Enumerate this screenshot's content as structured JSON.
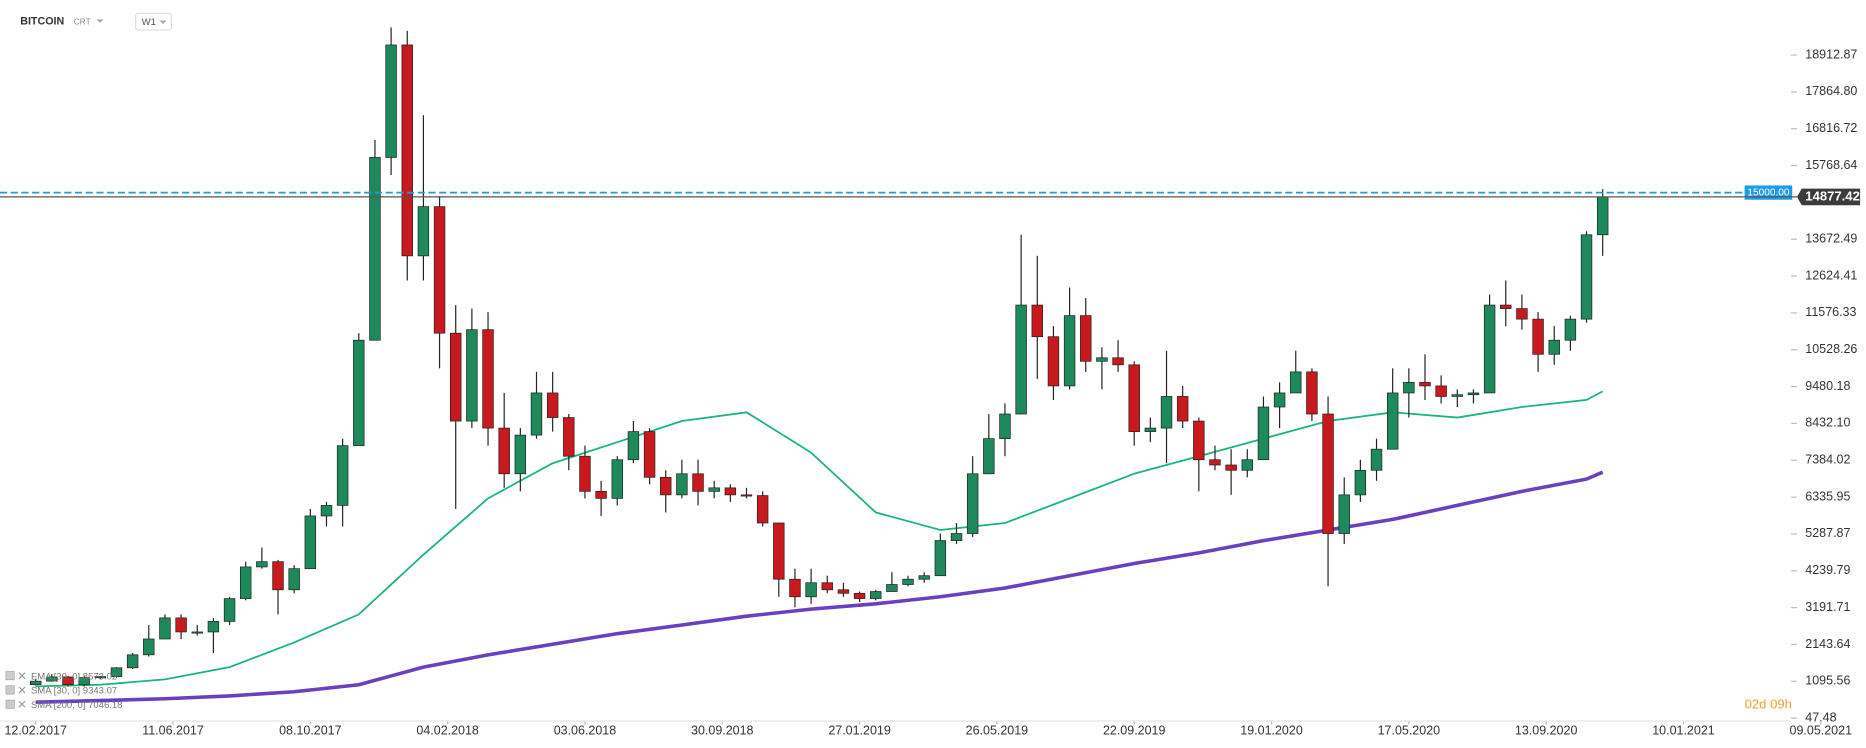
{
  "header": {
    "symbol": "BITCOIN",
    "sub": "CRT",
    "interval": "W1"
  },
  "countdown": "02d 09h",
  "chart_data": {
    "type": "candlestick",
    "up_color": "#1e8a5c",
    "down_color": "#c8191e",
    "ylim": [
      0,
      20470
    ],
    "yticks": [
      47.48,
      1095.56,
      2143.64,
      3191.71,
      4239.79,
      5287.87,
      6335.95,
      7384.02,
      {
        "value": 8432.1,
        "label": "8432.10"
      },
      9480.18,
      10528.26,
      11576.33,
      12624.41,
      13672.49,
      15768.64,
      16816.72,
      {
        "value": 17864.8,
        "label": "17864.80"
      },
      18912.87
    ],
    "xticks": [
      "12.02.2017",
      "11.06.2017",
      "08.10.2017",
      "04.02.2018",
      "03.06.2018",
      "30.09.2018",
      "27.01.2019",
      "26.05.2019",
      "22.09.2019",
      "19.01.2020",
      "17.05.2020",
      "13.09.2020",
      "10.01.2021",
      "09.05.2021"
    ],
    "last_price": 14877.42,
    "alert_line": {
      "value": 15000,
      "label": "15000.00",
      "color": "#1e9be9"
    },
    "x": [
      "12.02.2017",
      "26.02.2017",
      "12.03.2017",
      "26.03.2017",
      "09.04.2017",
      "23.04.2017",
      "07.05.2017",
      "21.05.2017",
      "04.06.2017",
      "18.06.2017",
      "02.07.2017",
      "16.07.2017",
      "30.07.2017",
      "13.08.2017",
      "27.08.2017",
      "10.09.2017",
      "24.09.2017",
      "08.10.2017",
      "22.10.2017",
      "05.11.2017",
      "19.11.2017",
      "03.12.2017",
      "17.12.2017",
      "31.12.2017",
      "14.01.2018",
      "28.01.2018",
      "11.02.2018",
      "25.02.2018",
      "11.03.2018",
      "25.03.2018",
      "08.04.2018",
      "22.04.2018",
      "06.05.2018",
      "20.05.2018",
      "03.06.2018",
      "17.06.2018",
      "01.07.2018",
      "15.07.2018",
      "29.07.2018",
      "12.08.2018",
      "26.08.2018",
      "09.09.2018",
      "23.09.2018",
      "07.10.2018",
      "21.10.2018",
      "04.11.2018",
      "18.11.2018",
      "02.12.2018",
      "16.12.2018",
      "30.12.2018",
      "13.01.2019",
      "27.01.2019",
      "10.02.2019",
      "24.02.2019",
      "10.03.2019",
      "24.03.2019",
      "07.04.2019",
      "21.04.2019",
      "05.05.2019",
      "19.05.2019",
      "02.06.2019",
      "16.06.2019",
      "30.06.2019",
      "14.07.2019",
      "28.07.2019",
      "11.08.2019",
      "25.08.2019",
      "08.09.2019",
      "22.09.2019",
      "06.10.2019",
      "20.10.2019",
      "03.11.2019",
      "17.11.2019",
      "01.12.2019",
      "15.12.2019",
      "29.12.2019",
      "12.01.2020",
      "26.01.2020",
      "09.02.2020",
      "23.02.2020",
      "08.03.2020",
      "22.03.2020",
      "05.04.2020",
      "19.04.2020",
      "03.05.2020",
      "17.05.2020",
      "31.05.2020",
      "14.06.2020",
      "28.06.2020",
      "12.07.2020",
      "26.07.2020",
      "09.08.2020",
      "23.08.2020",
      "06.09.2020",
      "20.09.2020",
      "04.10.2020",
      "18.10.2020",
      "01.11.2020"
    ],
    "values": [
      [
        1000,
        1150,
        980,
        1100
      ],
      [
        1100,
        1300,
        1100,
        1220
      ],
      [
        1220,
        1250,
        950,
        1000
      ],
      [
        1000,
        1250,
        950,
        1200
      ],
      [
        1200,
        1250,
        1150,
        1230
      ],
      [
        1230,
        1500,
        1200,
        1480
      ],
      [
        1480,
        1900,
        1450,
        1850
      ],
      [
        1850,
        2700,
        1800,
        2300
      ],
      [
        2300,
        3000,
        2300,
        2900
      ],
      [
        2900,
        3000,
        2300,
        2500
      ],
      [
        2500,
        2700,
        2400,
        2500
      ],
      [
        2500,
        2900,
        1900,
        2800
      ],
      [
        2800,
        3500,
        2700,
        3450
      ],
      [
        3450,
        4500,
        3400,
        4350
      ],
      [
        4350,
        4900,
        4300,
        4500
      ],
      [
        4500,
        4550,
        3000,
        3700
      ],
      [
        3700,
        4400,
        3600,
        4300
      ],
      [
        4300,
        6000,
        4300,
        5800
      ],
      [
        5800,
        6200,
        5500,
        6100
      ],
      [
        6100,
        8000,
        5500,
        7800
      ],
      [
        7800,
        11000,
        7800,
        10800
      ],
      [
        10800,
        16500,
        10800,
        16000
      ],
      [
        16000,
        19700,
        15500,
        19200
      ],
      [
        19200,
        19600,
        12500,
        13200
      ],
      [
        13200,
        17200,
        12500,
        14600
      ],
      [
        14600,
        14900,
        10000,
        11000
      ],
      [
        11000,
        11800,
        6000,
        8500
      ],
      [
        8500,
        11700,
        8300,
        11100
      ],
      [
        11100,
        11600,
        7800,
        8300
      ],
      [
        8300,
        9300,
        6600,
        7000
      ],
      [
        7000,
        8300,
        6500,
        8100
      ],
      [
        8100,
        9900,
        8000,
        9300
      ],
      [
        9300,
        9900,
        8200,
        8600
      ],
      [
        8600,
        8700,
        7100,
        7500
      ],
      [
        7500,
        7800,
        6300,
        6500
      ],
      [
        6500,
        6800,
        5800,
        6300
      ],
      [
        6300,
        7500,
        6100,
        7400
      ],
      [
        7400,
        8500,
        7300,
        8200
      ],
      [
        8200,
        8300,
        6700,
        6900
      ],
      [
        6900,
        7100,
        5900,
        6400
      ],
      [
        6400,
        7400,
        6300,
        7000
      ],
      [
        7000,
        7400,
        6100,
        6500
      ],
      [
        6500,
        6800,
        6300,
        6600
      ],
      [
        6600,
        6700,
        6200,
        6400
      ],
      [
        6400,
        6600,
        6300,
        6380
      ],
      [
        6380,
        6500,
        5500,
        5600
      ],
      [
        5600,
        5600,
        3500,
        4000
      ],
      [
        4000,
        4300,
        3200,
        3500
      ],
      [
        3500,
        4300,
        3300,
        3900
      ],
      [
        3900,
        4100,
        3600,
        3700
      ],
      [
        3700,
        3900,
        3500,
        3600
      ],
      [
        3600,
        3650,
        3350,
        3450
      ],
      [
        3450,
        3700,
        3400,
        3650
      ],
      [
        3650,
        4200,
        3650,
        3850
      ],
      [
        3850,
        4100,
        3800,
        4000
      ],
      [
        4000,
        4200,
        3900,
        4100
      ],
      [
        4100,
        5300,
        4100,
        5100
      ],
      [
        5100,
        5600,
        5000,
        5300
      ],
      [
        5300,
        7500,
        5200,
        7000
      ],
      [
        7000,
        8700,
        7000,
        8000
      ],
      [
        8000,
        9000,
        7500,
        8700
      ],
      [
        8700,
        13800,
        8700,
        11800
      ],
      [
        11800,
        13200,
        9700,
        10900
      ],
      [
        10900,
        11200,
        9100,
        9500
      ],
      [
        9500,
        12300,
        9400,
        11500
      ],
      [
        11500,
        12000,
        9900,
        10200
      ],
      [
        10200,
        10600,
        9400,
        10300
      ],
      [
        10300,
        10800,
        9900,
        10100
      ],
      [
        10100,
        10200,
        7800,
        8200
      ],
      [
        8200,
        8600,
        7900,
        8300
      ],
      [
        8300,
        10500,
        7300,
        9200
      ],
      [
        9200,
        9500,
        8300,
        8500
      ],
      [
        8500,
        8600,
        6500,
        7400
      ],
      [
        7400,
        7800,
        7100,
        7250
      ],
      [
        7250,
        7700,
        6400,
        7100
      ],
      [
        7100,
        7700,
        6900,
        7400
      ],
      [
        7400,
        9200,
        7400,
        8900
      ],
      [
        8900,
        9600,
        8300,
        9300
      ],
      [
        9300,
        10500,
        9300,
        9900
      ],
      [
        9900,
        10000,
        8500,
        8700
      ],
      [
        8700,
        9200,
        3800,
        5300
      ],
      [
        5300,
        6900,
        5000,
        6400
      ],
      [
        6400,
        7400,
        6200,
        7100
      ],
      [
        7100,
        8000,
        6800,
        7700
      ],
      [
        7700,
        10000,
        7700,
        9300
      ],
      [
        9300,
        10000,
        8600,
        9600
      ],
      [
        9600,
        10400,
        9100,
        9500
      ],
      [
        9500,
        9800,
        9000,
        9200
      ],
      [
        9200,
        9400,
        8900,
        9250
      ],
      [
        9250,
        9400,
        9000,
        9300
      ],
      [
        9300,
        12100,
        9300,
        11800
      ],
      [
        11800,
        12500,
        11200,
        11700
      ],
      [
        11700,
        12100,
        11100,
        11400
      ],
      [
        11400,
        11600,
        9900,
        10400
      ],
      [
        10400,
        11200,
        10100,
        10800
      ],
      [
        10800,
        11500,
        10500,
        11400
      ],
      [
        11400,
        13900,
        11300,
        13800
      ],
      [
        13800,
        15100,
        13200,
        14877.42
      ]
    ],
    "overlays": [
      {
        "color": "#1cb47c",
        "width": 1.5,
        "x": [
          "12.02.2017",
          "09.04.2017",
          "04.06.2017",
          "30.07.2017",
          "24.09.2017",
          "19.11.2017",
          "14.01.2018",
          "11.03.2018",
          "06.05.2018",
          "01.07.2018",
          "26.08.2018",
          "21.10.2018",
          "16.12.2018",
          "10.02.2019",
          "07.04.2019",
          "02.06.2019",
          "28.07.2019",
          "22.09.2019",
          "17.11.2019",
          "12.01.2020",
          "08.03.2020",
          "03.05.2020",
          "28.06.2020",
          "23.08.2020",
          "18.10.2020",
          "01.11.2020"
        ],
        "values": [
          950,
          1000,
          1150,
          1500,
          2200,
          3000,
          4700,
          6300,
          7300,
          7900,
          8500,
          8750,
          7600,
          5900,
          5400,
          5600,
          6300,
          7000,
          7500,
          8000,
          8500,
          8750,
          8600,
          8900,
          9100,
          9343.07
        ]
      },
      {
        "color": "#6a3fc0",
        "width": 3,
        "x": [
          "12.02.2017",
          "09.04.2017",
          "04.06.2017",
          "30.07.2017",
          "24.09.2017",
          "19.11.2017",
          "14.01.2018",
          "11.03.2018",
          "06.05.2018",
          "01.07.2018",
          "26.08.2018",
          "21.10.2018",
          "16.12.2018",
          "10.02.2019",
          "07.04.2019",
          "02.06.2019",
          "28.07.2019",
          "22.09.2019",
          "17.11.2019",
          "12.01.2020",
          "08.03.2020",
          "03.05.2020",
          "28.06.2020",
          "23.08.2020",
          "18.10.2020",
          "01.11.2020"
        ],
        "values": [
          500,
          550,
          600,
          680,
          800,
          1000,
          1500,
          1850,
          2150,
          2450,
          2700,
          2950,
          3150,
          3300,
          3500,
          3750,
          4100,
          4450,
          4750,
          5100,
          5400,
          5700,
          6100,
          6500,
          6850,
          7046.18
        ]
      }
    ],
    "indicators": [
      {
        "name": "EMA [30, 0]",
        "value": 8573.02
      },
      {
        "name": "SMA [30, 0]",
        "value": 9343.07
      },
      {
        "name": "SMA [200, 0]",
        "value": 7046.18
      }
    ]
  }
}
